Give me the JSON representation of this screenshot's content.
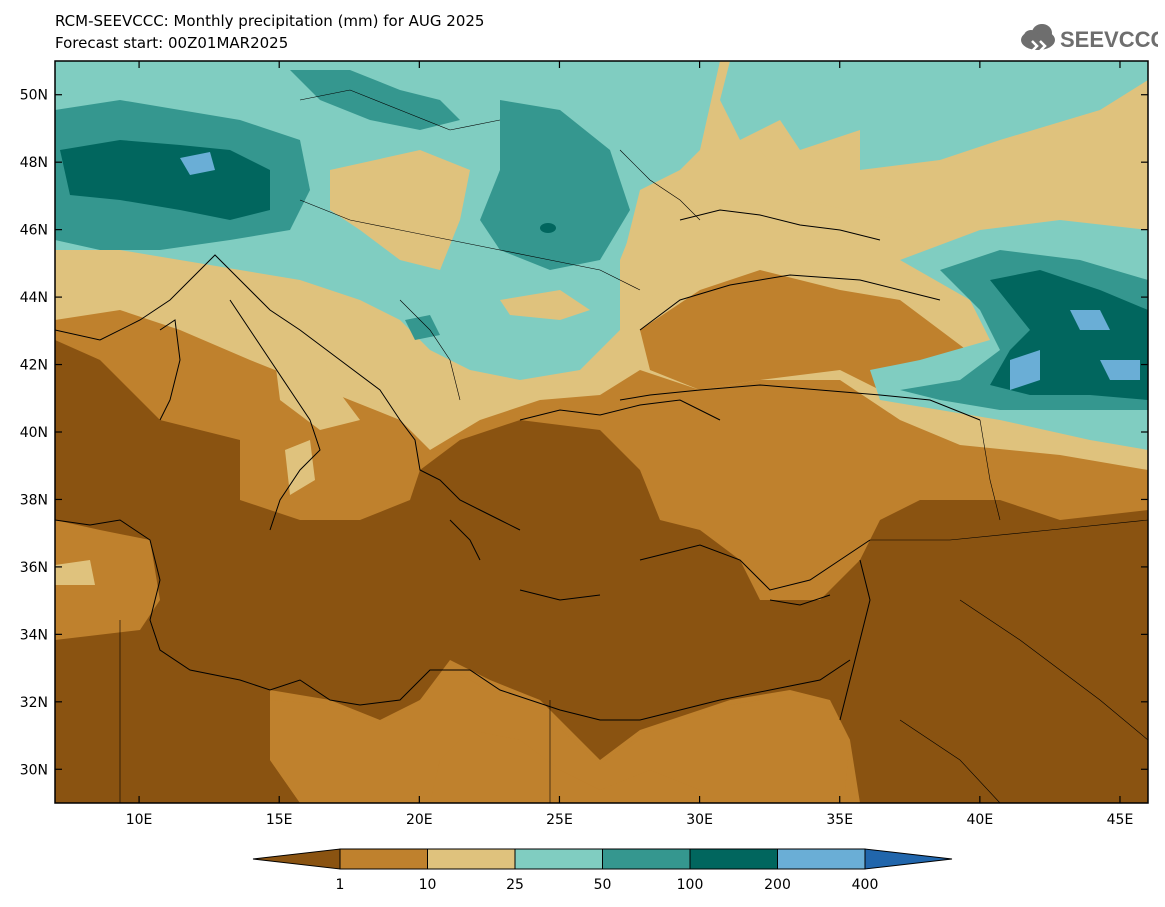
{
  "header": {
    "title_line1": "RCM-SEEVCCC: Monthly precipitation (mm) for AUG 2025",
    "title_line2": "Forecast start: 00Z01MAR2025",
    "logo_text": "SEEVCCC"
  },
  "map": {
    "lon_range": [
      7,
      46
    ],
    "lat_range": [
      29,
      51
    ],
    "x_ticks": [
      "10E",
      "15E",
      "20E",
      "25E",
      "30E",
      "35E",
      "40E",
      "45E"
    ],
    "y_ticks": [
      "50N",
      "48N",
      "46N",
      "44N",
      "42N",
      "40N",
      "38N",
      "36N",
      "34N",
      "32N",
      "30N"
    ]
  },
  "colorbar": {
    "labels": [
      "1",
      "10",
      "25",
      "50",
      "100",
      "200",
      "400"
    ],
    "colors": {
      "lt1": "#8a5311",
      "c1_10": "#bf812d",
      "c10_25": "#dfc27d",
      "c25_50": "#80cdc1",
      "c50_100": "#35978f",
      "c100_200": "#01665e",
      "c200_400": "#6aaed6",
      "gt400": "#2166ac"
    }
  },
  "colors": {
    "border": "#000000",
    "coast": "#000000"
  }
}
